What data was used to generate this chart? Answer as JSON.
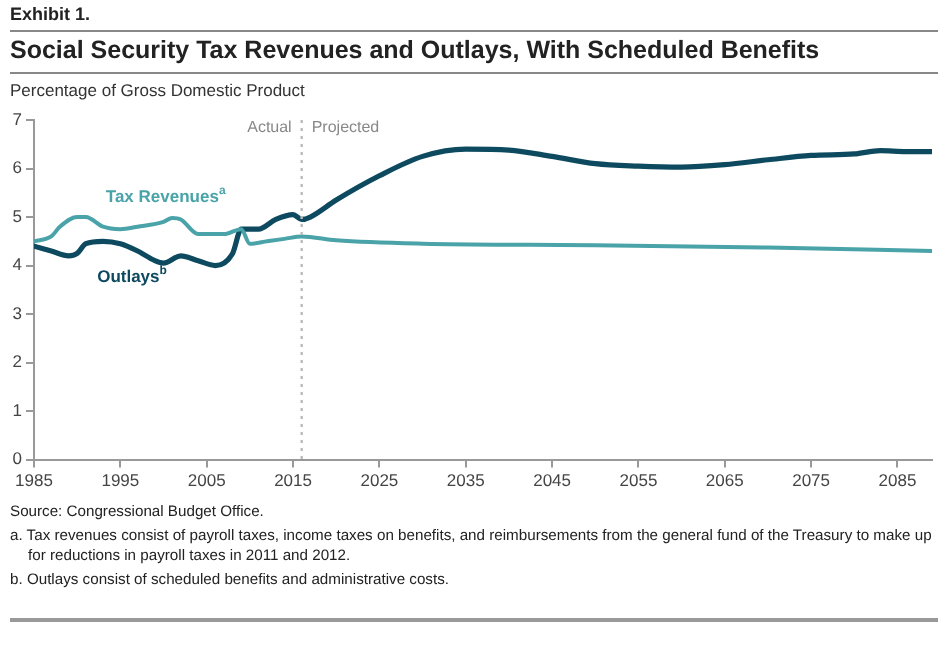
{
  "chart_data": {
    "type": "line",
    "title": "Social Security Tax Revenues and Outlays, With Scheduled Benefits",
    "ylabel": "Percentage of Gross Domestic Product",
    "series": [
      {
        "name": "Tax Revenues$^{a}$",
        "color": "#4aa3a8",
        "x": [
          1985,
          1987,
          1988,
          1990,
          1991,
          1993,
          1995,
          1997,
          2000,
          2001,
          2002,
          2004,
          2007,
          2009,
          2010,
          2012,
          2014,
          2016,
          2020,
          2030,
          2050,
          2070,
          2089
        ],
        "values": [
          4.5,
          4.6,
          4.8,
          5.0,
          5.0,
          4.8,
          4.75,
          4.8,
          4.9,
          4.98,
          4.95,
          4.65,
          4.65,
          4.75,
          4.45,
          4.5,
          4.55,
          4.6,
          4.52,
          4.45,
          4.42,
          4.37,
          4.3
        ]
      },
      {
        "name": "Outlays$^{b}$",
        "color": "#0d4a5f",
        "x": [
          1985,
          1987,
          1989,
          1990,
          1991,
          1993,
          1995,
          1997,
          1999,
          2000,
          2002,
          2004,
          2006,
          2008,
          2009,
          2011,
          2013,
          2015,
          2016,
          2017,
          2020,
          2025,
          2030,
          2035,
          2040,
          2045,
          2050,
          2055,
          2060,
          2065,
          2070,
          2075,
          2080,
          2083,
          2086,
          2089
        ],
        "values": [
          4.4,
          4.3,
          4.2,
          4.25,
          4.45,
          4.5,
          4.45,
          4.3,
          4.1,
          4.05,
          4.2,
          4.1,
          4.0,
          4.25,
          4.75,
          4.75,
          4.95,
          5.05,
          4.95,
          5.0,
          5.35,
          5.85,
          6.25,
          6.4,
          6.38,
          6.25,
          6.1,
          6.05,
          6.03,
          6.08,
          6.18,
          6.27,
          6.3,
          6.37,
          6.35,
          6.35
        ]
      }
    ],
    "xlim": [
      1985,
      2089
    ],
    "xticks": [
      1985,
      1995,
      2005,
      2015,
      2025,
      2035,
      2045,
      2055,
      2065,
      2075,
      2085
    ],
    "ylim": [
      0,
      7
    ],
    "yticks": [
      0,
      1,
      2,
      3,
      4,
      5,
      6,
      7
    ],
    "grid": false,
    "legend": false,
    "marker": "none",
    "line_style": "solid",
    "ref_lines": [
      {
        "axis": "x",
        "value": 2016,
        "label": "Actual",
        "color": "#bbbbbb",
        "line_style": "dotted"
      }
    ],
    "annotations": [
      {
        "text": "Projected",
        "x": 2016,
        "y": 7
      },
      "Exhibit 1.",
      "Source: Congressional Budget Office.",
      "a. Tax revenues consist of payroll taxes, income taxes on benefits, and reimbursements from the general fund of the Treasury to make up for reductions in payroll taxes in 2011 and 2012.",
      "b. Outlays consist of scheduled benefits and administrative costs."
    ]
  }
}
